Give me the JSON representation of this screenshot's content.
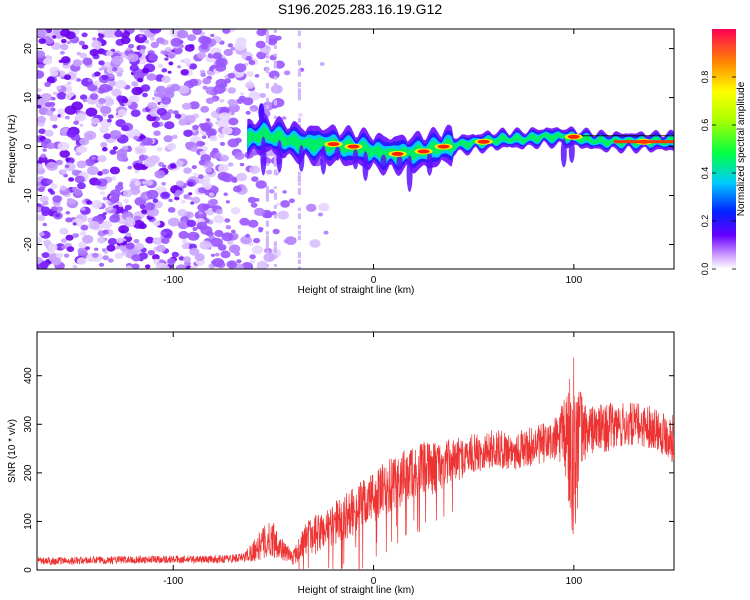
{
  "title": "S196.2025.283.16.19.G12",
  "chart_data": [
    {
      "type": "heatmap",
      "xlabel": "Height of straight line (km)",
      "ylabel": "Frequency (Hz)",
      "xlim": [
        -168,
        150
      ],
      "ylim": [
        -25,
        24
      ],
      "xticks": [
        -100,
        0,
        100
      ],
      "yticks": [
        -20,
        -10,
        0,
        10,
        20
      ],
      "xtick_labels": [
        "-100",
        "0",
        "100"
      ],
      "ytick_labels": [
        "-20",
        "-10",
        "0",
        "10",
        "20"
      ],
      "colorbar": {
        "label": "Normalized spectral amplitude",
        "range": [
          0,
          1
        ],
        "ticks": [
          0,
          0.2,
          0.4,
          0.6,
          0.8
        ],
        "tick_labels": [
          "0.0",
          "0.2",
          "0.4",
          "0.6",
          "0.8"
        ]
      },
      "noise_region_x": [
        -168,
        -35
      ],
      "ridge": {
        "x": [
          -63,
          -55,
          -45,
          -35,
          -25,
          -15,
          -5,
          5,
          15,
          25,
          35,
          45,
          55,
          65,
          75,
          85,
          95,
          105,
          115,
          125,
          135,
          150
        ],
        "frequency": [
          1.5,
          2.5,
          1.5,
          0.5,
          0.5,
          0.0,
          -0.5,
          -1.5,
          -1.5,
          -1.0,
          0.0,
          0.5,
          1.0,
          1.5,
          1.5,
          2.0,
          2.0,
          1.5,
          1.0,
          1.0,
          1.0,
          1.0
        ]
      },
      "hot_spots": [
        {
          "x": -20,
          "frequency": 0.5,
          "amplitude": 0.9
        },
        {
          "x": -10,
          "frequency": 0.0,
          "amplitude": 0.85
        },
        {
          "x": 12,
          "frequency": -1.5,
          "amplitude": 0.9
        },
        {
          "x": 25,
          "frequency": -1.0,
          "amplitude": 0.85
        },
        {
          "x": 35,
          "frequency": 0.0,
          "amplitude": 0.9
        },
        {
          "x": 55,
          "frequency": 1.0,
          "amplitude": 0.95
        },
        {
          "x": 100,
          "frequency": 2.0,
          "amplitude": 0.9
        },
        {
          "x": 135,
          "frequency": 1.0,
          "amplitude": 0.95
        }
      ]
    },
    {
      "type": "line",
      "xlabel": "Height of straight line (km)",
      "ylabel": "SNR (10 * v/v)",
      "xlim": [
        -168,
        150
      ],
      "ylim": [
        0,
        490
      ],
      "xticks": [
        -100,
        0,
        100
      ],
      "yticks": [
        0,
        100,
        200,
        300,
        400
      ],
      "xtick_labels": [
        "-100",
        "0",
        "100"
      ],
      "ytick_labels": [
        "0",
        "100",
        "200",
        "300",
        "400"
      ],
      "color": "#ee3333",
      "series": [
        {
          "name": "SNR",
          "x": [
            -168,
            -140,
            -110,
            -80,
            -65,
            -55,
            -50,
            -45,
            -40,
            -35,
            -30,
            -20,
            -10,
            0,
            10,
            20,
            30,
            40,
            50,
            60,
            70,
            80,
            90,
            95,
            98,
            100,
            102,
            105,
            110,
            120,
            130,
            140,
            150
          ],
          "mean": [
            18,
            20,
            22,
            22,
            25,
            55,
            65,
            40,
            25,
            60,
            70,
            95,
            120,
            150,
            175,
            205,
            210,
            225,
            240,
            250,
            245,
            255,
            265,
            280,
            260,
            250,
            270,
            285,
            290,
            295,
            300,
            295,
            270
          ],
          "spread": [
            8,
            8,
            8,
            8,
            10,
            35,
            40,
            20,
            15,
            35,
            40,
            45,
            50,
            55,
            60,
            55,
            55,
            45,
            40,
            40,
            40,
            40,
            45,
            70,
            170,
            190,
            150,
            60,
            50,
            50,
            45,
            45,
            50
          ]
        }
      ]
    }
  ]
}
